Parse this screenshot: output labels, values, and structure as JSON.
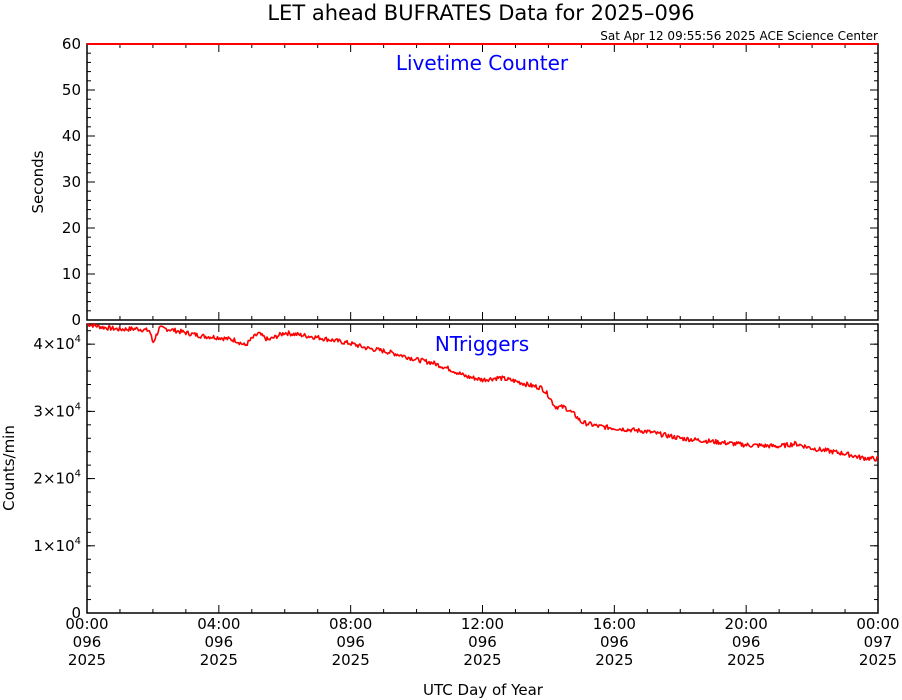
{
  "title": "LET ahead BUFRATES Data for 2025–096",
  "timestamp": "Sat Apr 12 09:55:56 2025 ACE Science Center",
  "chart_data": [
    {
      "type": "line",
      "panel_label": "Livetime Counter",
      "ylabel": "Seconds",
      "ylim": [
        0,
        60
      ],
      "yticks": [
        0,
        10,
        20,
        30,
        40,
        50,
        60
      ],
      "ytick_labels": [
        "0",
        "10",
        "20",
        "30",
        "40",
        "50",
        "60"
      ],
      "line_color": "#ff0000",
      "label_color": "#0000ff",
      "series": [
        {
          "x": [
            "00:00",
            "02:00",
            "04:00",
            "06:00",
            "08:00",
            "10:00",
            "12:00",
            "14:00",
            "16:00",
            "18:00",
            "20:00",
            "22:00",
            "24:00"
          ],
          "values": [
            60,
            60,
            60,
            60,
            60,
            60,
            60,
            60,
            60,
            60,
            60,
            60,
            60
          ]
        }
      ]
    },
    {
      "type": "line",
      "panel_label": "NTriggers",
      "ylabel": "Counts/min",
      "ylim": [
        0,
        43000
      ],
      "yticks": [
        0,
        10000,
        20000,
        30000,
        40000
      ],
      "ytick_labels": [
        {
          "base": "0",
          "exp": ""
        },
        {
          "base": "1×10",
          "exp": "4"
        },
        {
          "base": "2×10",
          "exp": "4"
        },
        {
          "base": "3×10",
          "exp": "4"
        },
        {
          "base": "4×10",
          "exp": "4"
        }
      ],
      "line_color": "#ff0000",
      "label_color": "#0000ff",
      "series": [
        {
          "x_hours": [
            0,
            0.5,
            1,
            1.5,
            1.9,
            2.0,
            2.2,
            2.5,
            3,
            3.5,
            4,
            4.5,
            4.8,
            5.0,
            5.2,
            5.5,
            6,
            7,
            8,
            8.5,
            9,
            9.5,
            10,
            10.5,
            11,
            11.5,
            12,
            12.5,
            13,
            13.5,
            13.8,
            14.0,
            14.2,
            14.5,
            14.8,
            15,
            15.5,
            16,
            17,
            18,
            19,
            20,
            21,
            21.5,
            22,
            23,
            23.5,
            24
          ],
          "values": [
            43000,
            42500,
            42200,
            42300,
            42000,
            40200,
            42400,
            42200,
            41700,
            41200,
            41000,
            40600,
            39800,
            40800,
            41600,
            40600,
            41700,
            41000,
            40100,
            39400,
            39000,
            38400,
            37700,
            37200,
            36300,
            35200,
            34700,
            35000,
            34500,
            33800,
            33500,
            32400,
            30700,
            30600,
            29500,
            28400,
            27800,
            27500,
            27000,
            26000,
            25500,
            25000,
            24800,
            25200,
            24500,
            23700,
            23100,
            22900
          ]
        }
      ]
    }
  ],
  "xaxis": {
    "label": "UTC Day of Year",
    "range_hours": [
      0,
      24
    ],
    "ticks": [
      {
        "hour": 0,
        "time": "00:00",
        "doy": "096",
        "year": "2025"
      },
      {
        "hour": 4,
        "time": "04:00",
        "doy": "096",
        "year": "2025"
      },
      {
        "hour": 8,
        "time": "08:00",
        "doy": "096",
        "year": "2025"
      },
      {
        "hour": 12,
        "time": "12:00",
        "doy": "096",
        "year": "2025"
      },
      {
        "hour": 16,
        "time": "16:00",
        "doy": "096",
        "year": "2025"
      },
      {
        "hour": 20,
        "time": "20:00",
        "doy": "096",
        "year": "2025"
      },
      {
        "hour": 24,
        "time": "00:00",
        "doy": "097",
        "year": "2025"
      }
    ]
  }
}
